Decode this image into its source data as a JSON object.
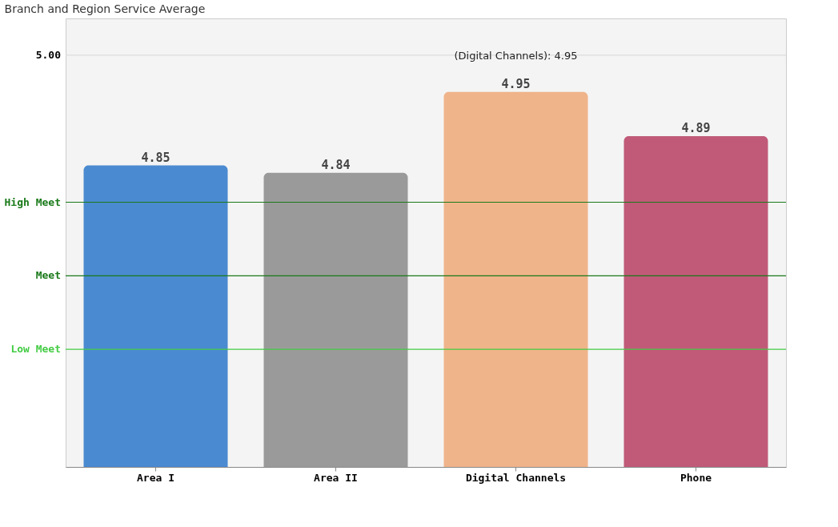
{
  "chart_data": {
    "type": "bar",
    "title": "Branch and Region Service Average",
    "categories": [
      "Area I",
      "Area II",
      "Digital Channels",
      "Phone"
    ],
    "values": [
      4.85,
      4.84,
      4.95,
      4.89
    ],
    "colors": [
      "#4a8ad0",
      "#9a9a9a",
      "#f0b48a",
      "#c05a78"
    ],
    "data_labels": true,
    "ylim": [
      4.44,
      5.05
    ],
    "ref_lines": [
      {
        "axis": "y",
        "value": 5.0,
        "label": "5.00",
        "color": "#dddddd"
      },
      {
        "axis": "y",
        "value": 4.8,
        "label": "High Meet",
        "color": "#1a7a1a"
      },
      {
        "axis": "y",
        "value": 4.7,
        "label": "Meet",
        "color": "#1a7a1a"
      },
      {
        "axis": "y",
        "value": 4.6,
        "label": "Low Meet",
        "color": "#44cc44"
      }
    ],
    "annotations": [
      {
        "text": "(Digital Channels): 4.95",
        "x": "Digital Channels",
        "y": 4.95
      }
    ]
  }
}
